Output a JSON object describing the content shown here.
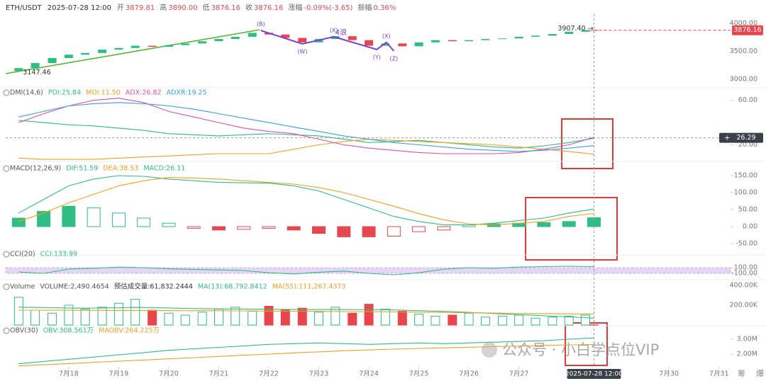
{
  "header": {
    "symbol": "ETH/USDT",
    "time": "2025-07-28 12:00",
    "fields": [
      {
        "label": "开",
        "value": "3879.81"
      },
      {
        "label": "高",
        "value": "3890.00"
      },
      {
        "label": "低",
        "value": "3876.16"
      },
      {
        "label": "收",
        "value": "3876.16"
      },
      {
        "label": "涨幅",
        "value": "-0.09%(-3.65)"
      },
      {
        "label": "振幅",
        "value": "0.36%"
      }
    ]
  },
  "watermark": "公众号 · 小白学点位VIP",
  "toolbar": [
    "筹",
    "爆"
  ],
  "chart_data": [
    {
      "type": "candlestick",
      "up_color": "#2ebd85",
      "down_color": "#e8464f",
      "xlim": [
        16.74,
        31.23
      ],
      "ylim": [
        2873,
        4164
      ],
      "yticks": [
        {
          "value": 4000,
          "label": "4000.00"
        },
        {
          "value": 3500,
          "label": "3500.00"
        },
        {
          "value": 3000,
          "label": "3000.00"
        }
      ],
      "x": [
        17,
        17.33,
        17.67,
        18,
        18.33,
        18.67,
        19,
        19.33,
        19.67,
        20,
        20.33,
        20.67,
        21,
        21.33,
        21.67,
        22,
        22.33,
        22.67,
        23,
        23.33,
        23.67,
        24,
        24.33,
        24.67,
        25,
        25.33,
        25.67,
        26,
        26.33,
        26.67,
        27,
        27.33,
        27.67,
        28,
        28.33,
        28.5
      ],
      "open": [
        3147.46,
        3200,
        3290,
        3380,
        3440,
        3470,
        3530,
        3560,
        3600,
        3580,
        3610,
        3640,
        3680,
        3720,
        3760,
        3830,
        3800,
        3740,
        3660,
        3720,
        3770,
        3700,
        3600,
        3640,
        3590,
        3660,
        3700,
        3680,
        3700,
        3720,
        3730,
        3760,
        3780,
        3810,
        3850,
        3879.81
      ],
      "close": [
        3200,
        3290,
        3380,
        3440,
        3470,
        3530,
        3560,
        3600,
        3580,
        3610,
        3640,
        3680,
        3720,
        3760,
        3830,
        3800,
        3740,
        3660,
        3720,
        3770,
        3700,
        3600,
        3640,
        3590,
        3660,
        3700,
        3680,
        3700,
        3720,
        3730,
        3760,
        3780,
        3810,
        3850,
        3879.81,
        3876.16
      ],
      "annotations": [
        {
          "text": "3147.46",
          "x": 17.0,
          "value": 3147.46
        },
        {
          "text": "3907.40 →",
          "x": 27.69,
          "value": 3907.4
        }
      ],
      "trendline": {
        "color": "#52b830",
        "x": [
          16.74,
          21.82
        ],
        "values": [
          3101,
          3886
        ]
      },
      "wave": {
        "color": "#7a3fd0",
        "labels": [
          "(B)",
          "(W)",
          "(X)",
          "(Y)",
          "(X)",
          "(Z)"
        ],
        "x": [
          21.84,
          22.67,
          23.3,
          24.16,
          24.35,
          24.5
        ],
        "values": [
          3873,
          3633,
          3760,
          3532,
          3660,
          3507
        ]
      },
      "wave_label": "4浪"
    },
    {
      "type": "line",
      "indicator": "DMI(14,6)",
      "xlim": [
        16.74,
        31.23
      ],
      "ylim": [
        5,
        70
      ],
      "yticks": [
        {
          "value": 60,
          "label": "60.00"
        },
        {
          "value": 20,
          "label": "20.00"
        }
      ],
      "crosshair": 26.29,
      "x": [
        17,
        17.5,
        18,
        18.5,
        19,
        19.5,
        20,
        20.5,
        21,
        21.5,
        22,
        22.5,
        23,
        23.5,
        24,
        24.5,
        25,
        25.5,
        26,
        26.5,
        27,
        27.5,
        28,
        28.5
      ],
      "series": [
        {
          "name": "PDI:25.84",
          "color": "#2ebd85",
          "values": [
            42,
            40,
            38,
            37,
            35,
            33,
            30,
            29,
            28,
            29,
            30,
            29,
            28,
            25,
            22,
            23,
            24,
            22,
            20,
            18,
            17,
            19,
            22,
            25.84
          ]
        },
        {
          "name": "MDI:11.50",
          "color": "#f0a020",
          "values": [
            8,
            7,
            7,
            7,
            8,
            9,
            10,
            11,
            12,
            12,
            12,
            16,
            20,
            23,
            25,
            24,
            23,
            22,
            21,
            20,
            18,
            16,
            14,
            11.5
          ]
        },
        {
          "name": "ADX:26.82",
          "color": "#d94fb4",
          "values": [
            40,
            48,
            55,
            60,
            62,
            58,
            50,
            45,
            40,
            35,
            32,
            30,
            25,
            20,
            17,
            15,
            13,
            12,
            12,
            12,
            13,
            16,
            20,
            26.82
          ]
        },
        {
          "name": "ADXR:19.25",
          "color": "#3a9ee0",
          "values": [
            45,
            50,
            55,
            57,
            58,
            57,
            55,
            52,
            48,
            44,
            40,
            36,
            32,
            28,
            25,
            22,
            20,
            18,
            16,
            15,
            14,
            15,
            17,
            19.25
          ]
        }
      ]
    },
    {
      "type": "macd",
      "indicator": "MACD(12,26,9)",
      "xlim": [
        16.74,
        31.23
      ],
      "ylim": [
        -62.5,
        187.5
      ],
      "yticks": [
        {
          "value": 150,
          "label": "150.00"
        },
        {
          "value": 100,
          "label": "100.00"
        },
        {
          "value": 50,
          "label": "50.00"
        },
        {
          "value": 0,
          "label": "0.00"
        },
        {
          "value": -50,
          "label": "-50.00"
        }
      ],
      "x": [
        17,
        17.5,
        18,
        18.5,
        19,
        19.5,
        20,
        20.5,
        21,
        21.5,
        22,
        22.5,
        23,
        23.5,
        24,
        24.5,
        25,
        25.5,
        26,
        26.5,
        27,
        27.5,
        28,
        28.5
      ],
      "series": [
        {
          "name": "DIF:51.59",
          "color": "#2ebd85",
          "values": [
            40,
            80,
            120,
            140,
            150,
            148,
            140,
            135,
            130,
            129,
            128,
            120,
            105,
            80,
            55,
            30,
            15,
            5,
            5,
            10,
            18,
            25,
            40,
            51.59
          ]
        },
        {
          "name": "DEA:38.53",
          "color": "#f0a020",
          "values": [
            15,
            40,
            70,
            95,
            120,
            135,
            145,
            143,
            140,
            135,
            130,
            125,
            115,
            100,
            80,
            60,
            38,
            20,
            8,
            5,
            10,
            15,
            30,
            38.53
          ]
        }
      ],
      "bars": {
        "name": "MACD:26.11",
        "up_color": "#2ebd85",
        "down_color": "#e8464f",
        "values": [
          25,
          45,
          60,
          55,
          40,
          25,
          10,
          -5,
          -10,
          -8,
          -5,
          -10,
          -20,
          -30,
          -30,
          -28,
          -15,
          -10,
          5,
          8,
          10,
          12,
          15,
          26.11
        ]
      }
    },
    {
      "type": "line",
      "indicator": "CCI(20)",
      "xlim": [
        16.74,
        31.23
      ],
      "ylim": [
        -325,
        500
      ],
      "yticks": [
        {
          "value": 100,
          "label": "100.00"
        },
        {
          "value": -100,
          "label": "-100.00"
        }
      ],
      "band_color": "#e6d6f5",
      "x": [
        17,
        17.5,
        18,
        18.5,
        19,
        19.5,
        20,
        20.5,
        21,
        21.5,
        22,
        22.5,
        23,
        23.5,
        24,
        24.5,
        25,
        25.5,
        26,
        26.5,
        27,
        27.5,
        28,
        28.5
      ],
      "series": [
        {
          "name": "CCI:133.99",
          "color": "#2ebd85",
          "values": [
            -50,
            -100,
            50,
            80,
            120,
            100,
            60,
            40,
            20,
            0,
            -80,
            -120,
            -60,
            -20,
            -100,
            -150,
            -80,
            50,
            100,
            80,
            120,
            140,
            150,
            133.99
          ]
        }
      ]
    },
    {
      "type": "volume",
      "indicator": "Volume",
      "note": "预估成交量:61,832.2444",
      "xlim": [
        16.74,
        31.23
      ],
      "ylim": [
        0,
        443000
      ],
      "yticks": [
        {
          "value": 400000,
          "label": "400.00K"
        },
        {
          "value": 200000,
          "label": "200.00K"
        }
      ],
      "x": [
        17,
        17.33,
        17.67,
        18,
        18.33,
        18.67,
        19,
        19.33,
        19.67,
        20,
        20.33,
        20.67,
        21,
        21.33,
        21.67,
        22,
        22.33,
        22.67,
        23,
        23.33,
        23.67,
        24,
        24.33,
        24.67,
        25,
        25.33,
        25.67,
        26,
        26.33,
        26.67,
        27,
        27.33,
        27.67,
        28,
        28.33,
        28.5
      ],
      "bars": {
        "name": "VOLUME:2,490.4654",
        "up_color": "#2ebd85",
        "down_color": "#e8464f",
        "values": [
          280000,
          150000,
          120000,
          200000,
          160000,
          180000,
          220000,
          260000,
          150000,
          120000,
          100000,
          130000,
          160000,
          180000,
          140000,
          190000,
          150000,
          170000,
          130000,
          180000,
          120000,
          210000,
          160000,
          140000,
          110000,
          90000,
          100000,
          120000,
          80000,
          90000,
          100000,
          70000,
          80000,
          90000,
          100000,
          2490.4654
        ]
      },
      "series": [
        {
          "name": "MA(13):68,792.8412",
          "color": "#2ebd85",
          "values": [
            180000,
            178000,
            175000,
            172000,
            170000,
            172000,
            175000,
            178000,
            176000,
            172000,
            168000,
            165000,
            163000,
            162000,
            160000,
            160000,
            158000,
            157000,
            156000,
            158000,
            155000,
            156000,
            155000,
            150000,
            145000,
            140000,
            135000,
            128000,
            120000,
            112000,
            105000,
            98000,
            90000,
            82000,
            75000,
            68792.8412
          ]
        },
        {
          "name": "MA(55):111,267.4373",
          "color": "#f0a020",
          "values": [
            150000,
            150000,
            149000,
            149000,
            148000,
            148000,
            147000,
            147000,
            146000,
            146000,
            145000,
            145000,
            144000,
            143000,
            142000,
            141000,
            140000,
            139000,
            138000,
            137000,
            136000,
            135000,
            134000,
            132000,
            130000,
            128000,
            126000,
            124000,
            122000,
            120000,
            118000,
            116000,
            115000,
            113000,
            112000,
            111267.4373
          ]
        }
      ]
    },
    {
      "type": "line",
      "indicator": "OBV(30)",
      "xlim": [
        16.74,
        31.23
      ],
      "ylim": [
        1140000,
        3810000
      ],
      "yticks": [
        {
          "value": 3000000,
          "label": "3.00M"
        },
        {
          "value": 2000000,
          "label": "2.00M"
        }
      ],
      "xticks": [
        {
          "value": 18,
          "label": "7月18"
        },
        {
          "value": 19,
          "label": "7月19"
        },
        {
          "value": 20,
          "label": "7月20"
        },
        {
          "value": 21,
          "label": "7月21"
        },
        {
          "value": 22,
          "label": "7月22"
        },
        {
          "value": 23,
          "label": "7月23"
        },
        {
          "value": 24,
          "label": "7月24"
        },
        {
          "value": 25,
          "label": "7月25"
        },
        {
          "value": 26,
          "label": "7月26"
        },
        {
          "value": 27,
          "label": "7月27"
        },
        {
          "value": 30,
          "label": "7月30"
        },
        {
          "value": 31,
          "label": "7月31"
        }
      ],
      "crosshair_x": {
        "value": 28.5,
        "label": "2025-07-28 12:00"
      },
      "x": [
        17,
        17.5,
        18,
        18.5,
        19,
        19.5,
        20,
        20.5,
        21,
        21.5,
        22,
        22.5,
        23,
        23.5,
        24,
        24.5,
        25,
        25.5,
        26,
        26.5,
        27,
        27.5,
        28,
        28.5
      ],
      "series": [
        {
          "name": "OBV:308.561万",
          "color": "#2ebd85",
          "values": [
            1350000,
            1500000,
            1650000,
            1800000,
            1950000,
            2100000,
            2250000,
            2350000,
            2450000,
            2550000,
            2650000,
            2700000,
            2750000,
            2700000,
            2650000,
            2700000,
            2750000,
            2700000,
            2750000,
            2800000,
            2850000,
            2900000,
            3000000,
            3085610
          ]
        },
        {
          "name": "MAOBV:264.225万",
          "color": "#f0a020",
          "values": [
            1200000,
            1280000,
            1360000,
            1440000,
            1520000,
            1600000,
            1680000,
            1760000,
            1840000,
            1920000,
            2000000,
            2080000,
            2150000,
            2220000,
            2280000,
            2330000,
            2380000,
            2420000,
            2460000,
            2500000,
            2540000,
            2580000,
            2620000,
            2642250
          ]
        }
      ]
    }
  ]
}
